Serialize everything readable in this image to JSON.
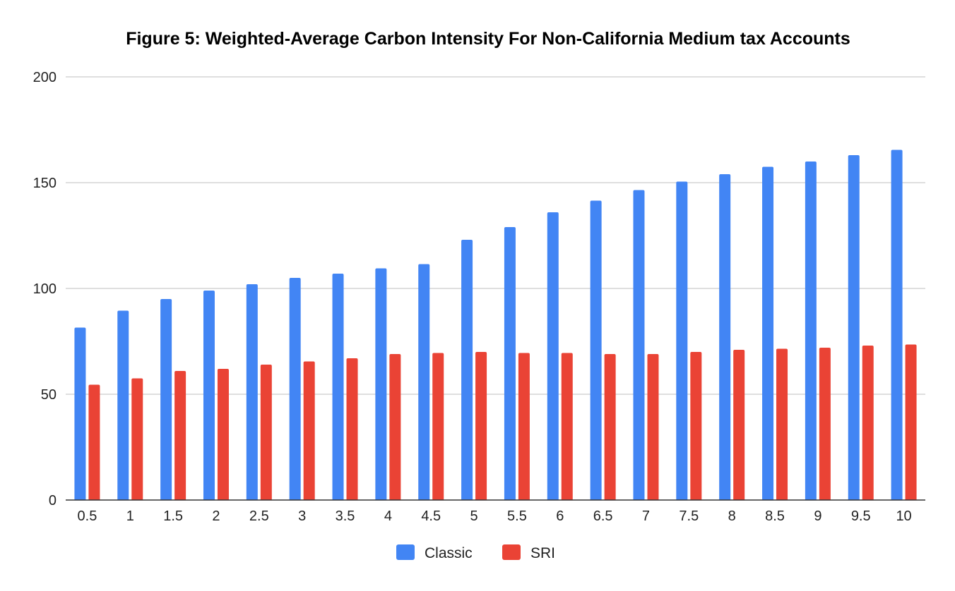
{
  "chart_data": {
    "type": "bar",
    "title": "Figure 5: Weighted-Average Carbon Intensity For Non-California Medium tax Accounts",
    "xlabel": "",
    "ylabel": "",
    "ylim": [
      0,
      200
    ],
    "yticks": [
      0,
      50,
      100,
      150,
      200
    ],
    "grid": true,
    "legend_position": "bottom",
    "categories": [
      "0.5",
      "1",
      "1.5",
      "2",
      "2.5",
      "3",
      "3.5",
      "4",
      "4.5",
      "5",
      "5.5",
      "6",
      "6.5",
      "7",
      "7.5",
      "8",
      "8.5",
      "9",
      "9.5",
      "10"
    ],
    "series": [
      {
        "name": "Classic",
        "color": "#4285f4",
        "values": [
          81.5,
          89.5,
          95,
          99,
          102,
          105,
          107,
          109.5,
          111.5,
          123,
          129,
          136,
          141.5,
          146.5,
          150.5,
          154,
          157.5,
          160,
          163,
          165.5
        ]
      },
      {
        "name": "SRI",
        "color": "#ea4335",
        "values": [
          54.5,
          57.5,
          61,
          62,
          64,
          65.5,
          67,
          69,
          69.5,
          70,
          69.5,
          69.5,
          69,
          69,
          70,
          71,
          71.5,
          72,
          73,
          73.5
        ]
      }
    ]
  }
}
